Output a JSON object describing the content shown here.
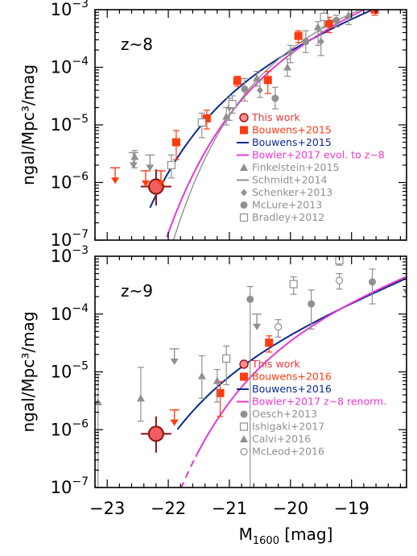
{
  "chart_data": [
    {
      "type": "scatter",
      "panel_label": "z~8",
      "xlabel_main": "M",
      "xlabel_sub": "1600",
      "xlabel_unit": " [mag]",
      "ylabel": "ngal/Mpc³/mag",
      "xlim": [
        -23.2,
        -18.1
      ],
      "ylim": [
        1e-07,
        0.001
      ],
      "yscale": "log",
      "x_ticks": [
        "-23",
        "-22",
        "-21",
        "-20",
        "-19"
      ],
      "x_tick_values": [
        -23,
        -22,
        -21,
        -20,
        -19
      ],
      "y_ticks": [
        "10^-7",
        "10^-6",
        "10^-5",
        "10^-4",
        "10^-3"
      ],
      "y_tick_values": [
        1e-07,
        1e-06,
        1e-05,
        0.0001,
        0.001
      ],
      "legend_position": "center-right",
      "legend": [
        {
          "label": "This work",
          "color": "#e8383a",
          "marker": "big-circle"
        },
        {
          "label": "Bouwens+2015",
          "color": "#ff3b10",
          "marker": "square"
        },
        {
          "label": "Bouwens+2015",
          "color": "#0a2a8f",
          "marker": "line"
        },
        {
          "label": "Bowler+2017 evol. to z~8",
          "color": "#e838d0",
          "marker": "line"
        },
        {
          "label": "Finkelstein+2015",
          "color": "#909090",
          "marker": "triangle"
        },
        {
          "label": "Schmidt+2014",
          "color": "#909090",
          "marker": "line"
        },
        {
          "label": "Schenker+2013",
          "color": "#909090",
          "marker": "diamond"
        },
        {
          "label": "McLure+2013",
          "color": "#909090",
          "marker": "circle"
        },
        {
          "label": "Bradley+2012",
          "color": "#909090",
          "marker": "open-square"
        }
      ],
      "series": [
        {
          "name": "This work",
          "color": "#e8383a",
          "points": [
            {
              "x": -22.2,
              "y": 8.5e-07,
              "ylo": 4e-07,
              "yhi": 1.7e-06,
              "xerr": 0.25
            }
          ]
        },
        {
          "name": "Bouwens+2015",
          "color": "#ff3b10",
          "marker": "square",
          "points": [
            {
              "x": -21.87,
              "y": 5e-06,
              "ylo": 2.5e-06,
              "yhi": 8e-06
            },
            {
              "x": -21.37,
              "y": 1.3e-05,
              "ylo": 8.5e-06,
              "yhi": 1.8e-05
            },
            {
              "x": -20.87,
              "y": 5.8e-05,
              "ylo": 4.7e-05,
              "yhi": 7e-05
            },
            {
              "x": -20.37,
              "y": 6e-05,
              "ylo": 3.5e-05,
              "yhi": 8.5e-05
            },
            {
              "x": -19.87,
              "y": 0.00035,
              "ylo": 0.00027,
              "yhi": 0.00043
            },
            {
              "x": -19.37,
              "y": 0.00057,
              "ylo": 0.0004,
              "yhi": 0.00074
            },
            {
              "x": -18.62,
              "y": 0.001,
              "ylo": 0.0008,
              "yhi": 0.001
            }
          ]
        },
        {
          "name": "Bouwens+2015 limits",
          "color": "#ff3b10",
          "marker": "downarrow",
          "points": [
            {
              "x": -22.87,
              "y": 1.8e-06
            },
            {
              "x": -22.37,
              "y": 1.6e-06
            },
            {
              "x": -22.12,
              "y": 1.6e-06
            }
          ]
        },
        {
          "name": "Finkelstein+2015",
          "color": "#909090",
          "marker": "triangle",
          "points": [
            {
              "x": -22.55,
              "y": 2.8e-06,
              "ylo": 1.8e-06,
              "yhi": 3.6e-06
            },
            {
              "x": -21.05,
              "y": 1.4e-05,
              "ylo": 1e-05,
              "yhi": 2e-05
            },
            {
              "x": -20.55,
              "y": 6.5e-05,
              "ylo": 4.7e-05,
              "yhi": 8.5e-05
            },
            {
              "x": -20.05,
              "y": 0.0001,
              "ylo": 7e-05,
              "yhi": 0.00014
            },
            {
              "x": -19.55,
              "y": 0.0005,
              "ylo": 0.00024,
              "yhi": 0.00062
            },
            {
              "x": -19.05,
              "y": 0.0008,
              "ylo": 0.00055,
              "yhi": 0.001
            }
          ]
        },
        {
          "name": "Schenker+2013",
          "color": "#909090",
          "marker": "diamond",
          "points": [
            {
              "x": -21.0,
              "y": 2e-05,
              "ylo": 1.2e-05,
              "yhi": 2.9e-05
            },
            {
              "x": -20.5,
              "y": 4e-05,
              "ylo": 3e-05,
              "yhi": 6e-05
            },
            {
              "x": -20.0,
              "y": 0.00018,
              "ylo": 0.00012,
              "yhi": 0.00024
            },
            {
              "x": -19.5,
              "y": 0.00028,
              "ylo": 0.00016,
              "yhi": 0.00042
            }
          ]
        },
        {
          "name": "McLure+2013",
          "color": "#909090",
          "marker": "circle",
          "points": [
            {
              "x": -20.75,
              "y": 4.2e-05,
              "ylo": 2.6e-05,
              "yhi": 6.4e-05
            },
            {
              "x": -20.25,
              "y": 2.9e-05,
              "ylo": 1.9e-05,
              "yhi": 4.5e-05
            },
            {
              "x": -19.75,
              "y": 0.00028,
              "ylo": 0.00018,
              "yhi": 0.00043
            },
            {
              "x": -19.25,
              "y": 0.00065,
              "ylo": 0.0005,
              "yhi": 0.0008
            }
          ]
        },
        {
          "name": "Bradley+2012",
          "color": "#909090",
          "marker": "open-square",
          "points": [
            {
              "x": -21.95,
              "y": 2e-06,
              "ylo": 1.2e-06,
              "yhi": 3e-06
            },
            {
              "x": -21.45,
              "y": 1.1e-05,
              "ylo": 6e-06,
              "yhi": 1.6e-05
            },
            {
              "x": -20.95,
              "y": 2.3e-05,
              "ylo": 1.6e-05,
              "yhi": 3.2e-05
            },
            {
              "x": -19.45,
              "y": 0.00075,
              "ylo": 0.0005,
              "yhi": 0.001
            }
          ]
        },
        {
          "name": "Upper limits",
          "color": "#909090",
          "marker": "downarrow",
          "points": [
            {
              "x": -22.57,
              "y": 3.3e-06
            },
            {
              "x": -22.3,
              "y": 3e-06
            }
          ]
        }
      ],
      "curves": [
        {
          "name": "Bouwens+2015",
          "color": "#0a2a8f",
          "style": "solid",
          "phi_star": 0.0002,
          "m_star": -20.63,
          "alpha": -2.02,
          "x_range": [
            -22.3,
            -18.1
          ]
        },
        {
          "name": "Bowler+2017 evol. to z~8",
          "color": "#e838d0",
          "style": "solid",
          "phi_star": 0.0005,
          "m_star": -20.0,
          "alpha": -2.0,
          "x_range": [
            -22.0,
            -18.1
          ]
        },
        {
          "name": "Bowler+2017 evol. to z~8 (extrapolated)",
          "color": "#e838d0",
          "style": "dashed",
          "phi_star": 0.0005,
          "m_star": -20.0,
          "alpha": -2.0,
          "x_range": [
            -22.5,
            -22.0
          ]
        },
        {
          "name": "Schmidt+2014",
          "color": "#909090",
          "style": "solid",
          "phi_star": 0.001,
          "m_star": -19.7,
          "alpha": -1.7,
          "x_range": [
            -22.0,
            -18.1
          ]
        }
      ]
    },
    {
      "type": "scatter",
      "panel_label": "z~9",
      "xlim": [
        -23.2,
        -18.1
      ],
      "ylim": [
        1e-07,
        0.001
      ],
      "yscale": "log",
      "legend_position": "center-right",
      "legend": [
        {
          "label": "This work",
          "color": "#e8383a",
          "marker": "big-circle"
        },
        {
          "label": "Bouwens+2016",
          "color": "#ff3b10",
          "marker": "square"
        },
        {
          "label": "Bouwens+2016",
          "color": "#0a2a8f",
          "marker": "line"
        },
        {
          "label": "Bowler+2017 z~8 renorm.",
          "color": "#e838d0",
          "marker": "line"
        },
        {
          "label": "Oesch+2013",
          "color": "#909090",
          "marker": "circle"
        },
        {
          "label": "Ishigaki+2017",
          "color": "#909090",
          "marker": "open-square"
        },
        {
          "label": "Calvi+2016",
          "color": "#909090",
          "marker": "triangle"
        },
        {
          "label": "McLeod+2016",
          "color": "#909090",
          "marker": "open-circle"
        }
      ],
      "series": [
        {
          "name": "This work",
          "color": "#e8383a",
          "points": [
            {
              "x": -22.2,
              "y": 8.5e-07,
              "ylo": 4e-07,
              "yhi": 1.7e-06,
              "xerr": 0.25
            }
          ]
        },
        {
          "name": "Bouwens+2016",
          "color": "#ff3b10",
          "marker": "square",
          "points": [
            {
              "x": -21.15,
              "y": 4.3e-06,
              "ylo": 1.7e-06,
              "yhi": 6.8e-06
            },
            {
              "x": -20.35,
              "y": 3.2e-05,
              "ylo": 2.2e-05,
              "yhi": 4.2e-05
            }
          ]
        },
        {
          "name": "Bouwens+2016 limits",
          "color": "#ff3b10",
          "marker": "downarrow",
          "points": [
            {
              "x": -21.9,
              "y": 2.2e-06
            }
          ]
        },
        {
          "name": "Oesch+2013",
          "color": "#909090",
          "marker": "circle",
          "points": [
            {
              "x": -20.66,
              "y": 0.00018,
              "ylo": 1e-07,
              "yhi": 0.0003
            },
            {
              "x": -19.66,
              "y": 0.00015,
              "ylo": 5.5e-05,
              "yhi": 0.00026
            },
            {
              "x": -18.66,
              "y": 0.00036,
              "ylo": 0.00015,
              "yhi": 0.0006
            }
          ]
        },
        {
          "name": "Ishigaki+2017",
          "color": "#909090",
          "marker": "open-square",
          "points": [
            {
              "x": -21.05,
              "y": 1.7e-05,
              "ylo": 6e-06,
              "yhi": 2.8e-05
            },
            {
              "x": -19.95,
              "y": 0.00033,
              "ylo": 0.00022,
              "yhi": 0.00044
            },
            {
              "x": -19.2,
              "y": 0.00085,
              "ylo": 0.0007,
              "yhi": 0.001
            }
          ]
        },
        {
          "name": "Calvi+2016",
          "color": "#909090",
          "marker": "triangle",
          "points": [
            {
              "x": -23.15,
              "y": 3e-06,
              "ylo": 1e-07,
              "yhi": 9e-06
            },
            {
              "x": -22.45,
              "y": 3.5e-06,
              "ylo": 1.4e-06,
              "yhi": 1.2e-05
            },
            {
              "x": -21.45,
              "y": 8.5e-06,
              "ylo": 3.5e-06,
              "yhi": 1.9e-05
            },
            {
              "x": -21.2,
              "y": 7e-06,
              "ylo": 3e-06,
              "yhi": 1.1e-05
            }
          ]
        },
        {
          "name": "McLeod+2016",
          "color": "#909090",
          "marker": "open-circle",
          "points": [
            {
              "x": -20.2,
              "y": 6e-05,
              "ylo": 4e-05,
              "yhi": 8e-05
            },
            {
              "x": -19.2,
              "y": 0.00038,
              "ylo": 0.00027,
              "yhi": 0.0005
            }
          ]
        },
        {
          "name": "Upper limits",
          "color": "#909090",
          "marker": "downarrow",
          "points": [
            {
              "x": -21.9,
              "y": 2.5e-05
            },
            {
              "x": -20.55,
              "y": 0.0001
            },
            {
              "x": -18.1,
              "y": 0.0004
            }
          ]
        }
      ],
      "curves": [
        {
          "name": "Bouwens+2016",
          "color": "#0a2a8f",
          "style": "solid",
          "phi_star": 2.7e-05,
          "m_star": -20.95,
          "alpha": -2.1,
          "x_range": [
            -21.85,
            -18.1
          ]
        },
        {
          "name": "Bowler+2017 z~8 renorm.",
          "color": "#e838d0",
          "style": "solid",
          "phi_star": 0.0001,
          "m_star": -20.0,
          "alpha": -2.0,
          "x_range": [
            -21.55,
            -18.1
          ]
        },
        {
          "name": "Bowler+2017 z~8 renorm. (extrapolated)",
          "color": "#e838d0",
          "style": "dashed",
          "phi_star": 0.0001,
          "m_star": -20.0,
          "alpha": -2.0,
          "x_range": [
            -22.15,
            -21.55
          ]
        }
      ]
    }
  ]
}
